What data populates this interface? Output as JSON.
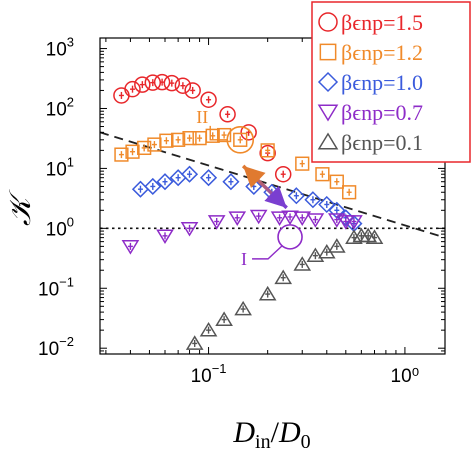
{
  "chart_data": {
    "type": "scatter",
    "xscale": "log",
    "yscale": "log",
    "xlim": [
      0.028,
      1.6
    ],
    "ylim": [
      0.008,
      1500
    ],
    "xlabel": "D_in/D_0",
    "ylabel": "𝒦",
    "x_ticks": [
      {
        "value": 0.1,
        "base": "10",
        "exp": "−1"
      },
      {
        "value": 1.0,
        "text": "10⁰"
      }
    ],
    "y_ticks": [
      {
        "value": 0.01,
        "base": "10",
        "exp": "−2"
      },
      {
        "value": 0.1,
        "base": "10",
        "exp": "−1"
      },
      {
        "value": 1,
        "base": "10",
        "exp": "0"
      },
      {
        "value": 10,
        "base": "10",
        "exp": "1"
      },
      {
        "value": 100,
        "base": "10",
        "exp": "2"
      },
      {
        "value": 1000,
        "base": "10",
        "exp": "3"
      }
    ],
    "legend_position": "top-right",
    "series": [
      {
        "name": "βϵnp=1.5",
        "marker": "circle",
        "color": "#e8272b",
        "points": [
          [
            0.036,
            165
          ],
          [
            0.041,
            210
          ],
          [
            0.046,
            250
          ],
          [
            0.052,
            270
          ],
          [
            0.058,
            275
          ],
          [
            0.065,
            265
          ],
          [
            0.074,
            240
          ],
          [
            0.083,
            200
          ],
          [
            0.1,
            140
          ],
          [
            0.125,
            80
          ],
          [
            0.16,
            40
          ],
          [
            0.2,
            18
          ],
          [
            0.24,
            8
          ]
        ]
      },
      {
        "name": "βϵnp=1.2",
        "marker": "square",
        "color": "#f08a2a",
        "points": [
          [
            0.036,
            17
          ],
          [
            0.041,
            19
          ],
          [
            0.047,
            22
          ],
          [
            0.053,
            25
          ],
          [
            0.061,
            29
          ],
          [
            0.07,
            30
          ],
          [
            0.08,
            32
          ],
          [
            0.09,
            32
          ],
          [
            0.105,
            35
          ],
          [
            0.12,
            36
          ],
          [
            0.145,
            30
          ],
          [
            0.2,
            20
          ],
          [
            0.3,
            12
          ],
          [
            0.38,
            8
          ],
          [
            0.45,
            6
          ],
          [
            0.52,
            4
          ]
        ]
      },
      {
        "name": "βϵnp=1.0",
        "marker": "diamond",
        "color": "#3b5bdc",
        "points": [
          [
            0.045,
            4.5
          ],
          [
            0.052,
            5
          ],
          [
            0.06,
            6
          ],
          [
            0.07,
            7
          ],
          [
            0.08,
            8
          ],
          [
            0.1,
            7
          ],
          [
            0.13,
            6
          ],
          [
            0.17,
            5
          ],
          [
            0.21,
            4
          ],
          [
            0.28,
            3.5
          ],
          [
            0.34,
            3
          ],
          [
            0.4,
            2.5
          ],
          [
            0.45,
            2
          ],
          [
            0.5,
            1.5
          ],
          [
            0.55,
            1.2
          ]
        ]
      },
      {
        "name": "βϵnp=0.7",
        "marker": "triangle-down",
        "color": "#8e2cc8",
        "points": [
          [
            0.04,
            0.5
          ],
          [
            0.06,
            0.75
          ],
          [
            0.08,
            1.0
          ],
          [
            0.11,
            1.3
          ],
          [
            0.14,
            1.5
          ],
          [
            0.18,
            1.6
          ],
          [
            0.23,
            1.5
          ],
          [
            0.26,
            1.55
          ],
          [
            0.3,
            1.5
          ],
          [
            0.35,
            1.4
          ],
          [
            0.45,
            1.4
          ],
          [
            0.5,
            1.3
          ],
          [
            0.55,
            1.3
          ]
        ]
      },
      {
        "name": "βϵnp=0.1",
        "marker": "triangle-up",
        "color": "#555555",
        "points": [
          [
            0.085,
            0.012
          ],
          [
            0.1,
            0.02
          ],
          [
            0.12,
            0.03
          ],
          [
            0.15,
            0.045
          ],
          [
            0.2,
            0.08
          ],
          [
            0.24,
            0.15
          ],
          [
            0.3,
            0.25
          ],
          [
            0.35,
            0.35
          ],
          [
            0.4,
            0.4
          ],
          [
            0.45,
            0.5
          ],
          [
            0.55,
            0.7
          ],
          [
            0.6,
            0.75
          ],
          [
            0.65,
            0.75
          ],
          [
            0.7,
            0.7
          ]
        ]
      }
    ],
    "dashed_line": {
      "from": [
        0.028,
        40
      ],
      "to": [
        1.6,
        0.7
      ],
      "color": "#222222"
    },
    "dotted_line": {
      "y": 1.0,
      "color": "#111111"
    },
    "annotations": [
      {
        "label": "II",
        "x": 0.145,
        "y": 30,
        "color": "#f08a2a"
      },
      {
        "label": "I",
        "x": 0.26,
        "y": 0.72,
        "color": "#8e2cc8"
      }
    ],
    "arrow": {
      "from": [
        0.15,
        11
      ],
      "to": [
        0.25,
        2.2
      ]
    }
  }
}
